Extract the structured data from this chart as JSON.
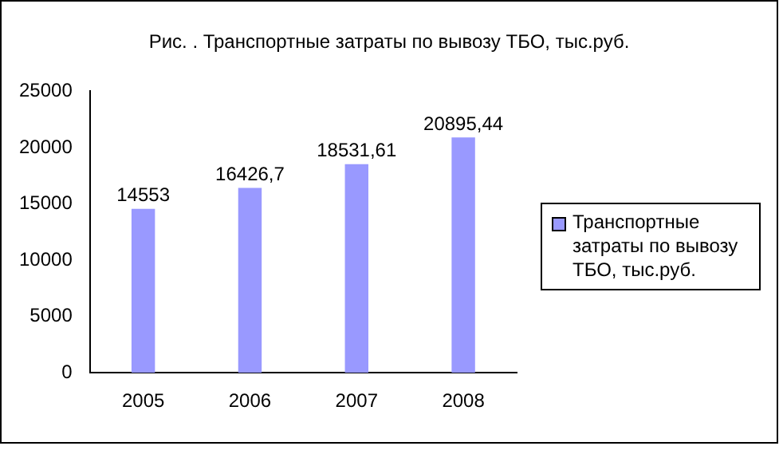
{
  "chart_data": {
    "type": "bar",
    "title": "Рис. . Транспортные затраты по вывозу ТБО, тыс.руб.",
    "categories": [
      "2005",
      "2006",
      "2007",
      "2008"
    ],
    "series": [
      {
        "name": "Транспортные затраты по вывозу ТБО, тыс.руб.",
        "color": "#9999ff",
        "values": [
          14553,
          16426.7,
          18531.61,
          20895.44
        ],
        "value_labels": [
          "14553",
          "16426,7",
          "18531,61",
          "20895,44"
        ]
      }
    ],
    "ylim": [
      0,
      25000
    ],
    "yticks": [
      0,
      5000,
      10000,
      15000,
      20000,
      25000
    ],
    "grid": false,
    "legend": "right"
  }
}
